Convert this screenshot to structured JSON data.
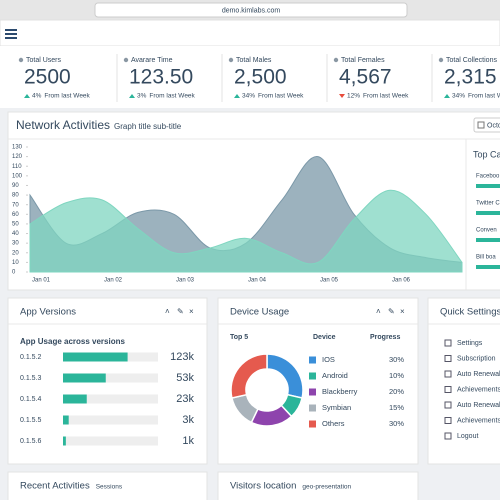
{
  "browser": {
    "url": "demo.kimlabs.com"
  },
  "stats": [
    {
      "label": "Total Users",
      "value": "2500",
      "change": "4%",
      "change_text": "From last Week",
      "trend": "up",
      "color": "#34495e"
    },
    {
      "label": "Avarare Time",
      "value": "123.50",
      "change": "3%",
      "change_text": "From last Week",
      "trend": "up",
      "color": "#34495e"
    },
    {
      "label": "Total Males",
      "value": "2,500",
      "change": "34%",
      "change_text": "From last Week",
      "trend": "up",
      "color": "#2bb59a"
    },
    {
      "label": "Total Females",
      "value": "4,567",
      "change": "12%",
      "change_text": "From last Week",
      "trend": "down",
      "color": "#34495e"
    },
    {
      "label": "Total Collections",
      "value": "2,315",
      "change": "34%",
      "change_text": "From last Week",
      "trend": "up",
      "color": "#34495e"
    }
  ],
  "network": {
    "title": "Network Activities",
    "subtitle": "Graph title sub-title",
    "button": "Octo",
    "side_title": "Top Ca",
    "side_items": [
      "Faceboo",
      "Twitter C",
      "Conven",
      "Bill boa"
    ],
    "chart_data": {
      "type": "area",
      "categories": [
        "Jan 01",
        null,
        "Jan 02",
        null,
        "Jan 03",
        null,
        "Jan 04",
        null,
        "Jan 05",
        null,
        "Jan 06",
        null,
        null
      ],
      "ylim": [
        0,
        130
      ],
      "yticks": [
        0,
        10,
        20,
        30,
        40,
        50,
        60,
        70,
        80,
        90,
        100,
        110,
        120,
        130
      ],
      "series": [
        {
          "color": "#7b98a8",
          "values": [
            80,
            30,
            40,
            62,
            60,
            25,
            30,
            75,
            120,
            60,
            25,
            15,
            10
          ]
        },
        {
          "color": "#7fd6c0",
          "values": [
            50,
            72,
            75,
            45,
            20,
            25,
            35,
            20,
            10,
            55,
            85,
            60,
            10
          ]
        }
      ]
    }
  },
  "app_versions": {
    "title": "App Versions",
    "subtitle": "App Usage across versions",
    "color": "#2bb59a",
    "xlim": [
      0,
      100
    ],
    "versions": [
      "0.1.5.2",
      "0.1.5.3",
      "0.1.5.4",
      "0.1.5.5",
      "0.1.5.6"
    ],
    "progress": [
      68,
      45,
      25,
      6,
      3
    ],
    "counts": [
      "123k",
      "53k",
      "23k",
      "3k",
      "1k"
    ]
  },
  "device_usage": {
    "title": "Device Usage",
    "headers": [
      "Top 5",
      "Device",
      "Progress"
    ],
    "devices": [
      "IOS",
      "Android",
      "Blackberry",
      "Symbian",
      "Others"
    ],
    "colors": [
      "#3a8fd9",
      "#2bb59a",
      "#8e44ad",
      "#a9b3bb",
      "#e55a4e"
    ],
    "values": [
      30,
      10,
      20,
      15,
      30
    ],
    "value_labels": [
      "30%",
      "10%",
      "20%",
      "15%",
      "30%"
    ]
  },
  "quick_settings": {
    "title": "Quick Settings",
    "items": [
      "Settings",
      "Subscription",
      "Auto Renewal",
      "Achievements",
      "Auto Renewal",
      "Achievements",
      "Logout"
    ]
  },
  "recent": {
    "title": "Recent Activities",
    "tag": "Sessions"
  },
  "visitors": {
    "title": "Visitors location",
    "tag": "geo-presentation"
  }
}
